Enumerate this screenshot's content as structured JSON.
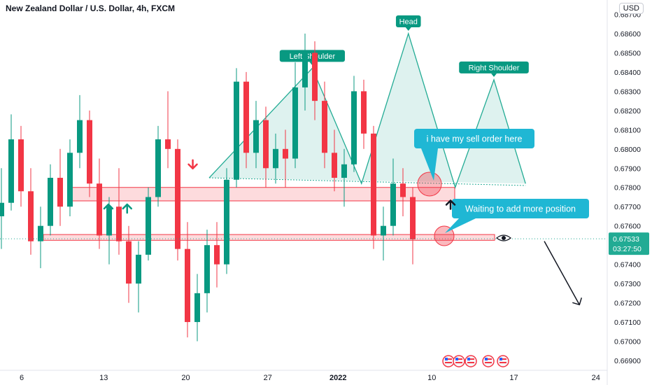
{
  "header": {
    "title": "New Zealand Dollar / U.S. Dollar, 4h, FXCM",
    "currency": "USD"
  },
  "price_tag": {
    "price": "0.67533",
    "countdown": "03:27:50"
  },
  "chart_data": {
    "type": "candlestick",
    "symbol": "NZDUSD",
    "interval": "4h",
    "y_ticks": [
      "0.68700",
      "0.68600",
      "0.68500",
      "0.68400",
      "0.68300",
      "0.68200",
      "0.68100",
      "0.68000",
      "0.67900",
      "0.67800",
      "0.67700",
      "0.67600",
      "0.67400",
      "0.67300",
      "0.67200",
      "0.67100",
      "0.67000",
      "0.66900"
    ],
    "ylim": [
      0.6686,
      0.6873
    ],
    "x_ticks": [
      "6",
      "13",
      "20",
      "27",
      "2022",
      "10",
      "17",
      "24"
    ],
    "zones": [
      {
        "from": 0.6773,
        "to": 0.678,
        "name": "resistance-zone"
      },
      {
        "from": 0.67525,
        "to": 0.67555,
        "name": "support-zone"
      }
    ],
    "pattern": {
      "name": "Head and Shoulders",
      "labels": [
        "Left Shoulder",
        "Head",
        "Right Shoulder"
      ],
      "points": [
        {
          "x": 16.0,
          "y": 0.6785
        },
        {
          "x": 24.8,
          "y": 0.6842
        },
        {
          "x": 29.0,
          "y": 0.6782
        },
        {
          "x": 33.0,
          "y": 0.686
        },
        {
          "x": 37.0,
          "y": 0.678
        },
        {
          "x": 40.3,
          "y": 0.6836
        },
        {
          "x": 43.0,
          "y": 0.6782
        }
      ],
      "neckline": [
        {
          "x": 16.0,
          "y": 0.6785
        },
        {
          "x": 43.0,
          "y": 0.6781
        }
      ]
    },
    "callouts": [
      "i have my sell order here",
      "Waiting to add more position"
    ],
    "current_price": 0.67533,
    "projection": [
      {
        "x": 44.6,
        "y": 0.6752
      },
      {
        "x": 47.6,
        "y": 0.6719
      }
    ],
    "up_arrows_at": [
      {
        "x": 7.4,
        "y": 0.6769
      },
      {
        "x": 9.0,
        "y": 0.6769
      },
      {
        "x": 36.6,
        "y": 0.6771
      }
    ],
    "down_arrows_at": [
      {
        "x": 14.6,
        "y": 0.6792
      }
    ],
    "x_day_positions": [
      0,
      7,
      14,
      21,
      27,
      35,
      42,
      49
    ],
    "candles": [
      [
        0.6765,
        0.679,
        0.6748,
        0.6772
      ],
      [
        0.6772,
        0.6818,
        0.6768,
        0.6805
      ],
      [
        0.6805,
        0.6812,
        0.677,
        0.6778
      ],
      [
        0.6778,
        0.679,
        0.6745,
        0.6752
      ],
      [
        0.6752,
        0.677,
        0.6738,
        0.676
      ],
      [
        0.676,
        0.6792,
        0.6755,
        0.6785
      ],
      [
        0.6785,
        0.68,
        0.676,
        0.677
      ],
      [
        0.677,
        0.6805,
        0.6765,
        0.6798
      ],
      [
        0.6798,
        0.6828,
        0.679,
        0.6815
      ],
      [
        0.6815,
        0.682,
        0.6775,
        0.6782
      ],
      [
        0.6782,
        0.6795,
        0.6748,
        0.6755
      ],
      [
        0.6755,
        0.6775,
        0.674,
        0.677
      ],
      [
        0.677,
        0.679,
        0.6745,
        0.6752
      ],
      [
        0.6752,
        0.676,
        0.672,
        0.673
      ],
      [
        0.673,
        0.6752,
        0.6715,
        0.6745
      ],
      [
        0.6745,
        0.678,
        0.6742,
        0.6775
      ],
      [
        0.6775,
        0.6812,
        0.677,
        0.6805
      ],
      [
        0.6805,
        0.683,
        0.679,
        0.68
      ],
      [
        0.68,
        0.6805,
        0.6742,
        0.6748
      ],
      [
        0.6748,
        0.6762,
        0.6702,
        0.671
      ],
      [
        0.671,
        0.6735,
        0.67,
        0.6725
      ],
      [
        0.6725,
        0.6758,
        0.6715,
        0.675
      ],
      [
        0.675,
        0.6762,
        0.6728,
        0.674
      ],
      [
        0.674,
        0.679,
        0.6735,
        0.6784
      ],
      [
        0.6784,
        0.6842,
        0.678,
        0.6835
      ],
      [
        0.6835,
        0.684,
        0.679,
        0.6798
      ],
      [
        0.6798,
        0.6825,
        0.679,
        0.6815
      ],
      [
        0.6815,
        0.6822,
        0.678,
        0.679
      ],
      [
        0.679,
        0.6808,
        0.6782,
        0.68
      ],
      [
        0.68,
        0.681,
        0.678,
        0.6795
      ],
      [
        0.6795,
        0.6845,
        0.679,
        0.6832
      ],
      [
        0.6832,
        0.686,
        0.682,
        0.685
      ],
      [
        0.685,
        0.6856,
        0.6815,
        0.6825
      ],
      [
        0.6825,
        0.6835,
        0.679,
        0.6798
      ],
      [
        0.6798,
        0.681,
        0.6778,
        0.6785
      ],
      [
        0.6785,
        0.68,
        0.677,
        0.6792
      ],
      [
        0.6792,
        0.6838,
        0.6788,
        0.683
      ],
      [
        0.683,
        0.6836,
        0.68,
        0.6808
      ],
      [
        0.6808,
        0.6812,
        0.6748,
        0.6755
      ],
      [
        0.6755,
        0.677,
        0.6742,
        0.676
      ],
      [
        0.676,
        0.6795,
        0.6755,
        0.6782
      ],
      [
        0.6782,
        0.679,
        0.6765,
        0.6775
      ],
      [
        0.6775,
        0.678,
        0.674,
        0.6753
      ]
    ]
  }
}
